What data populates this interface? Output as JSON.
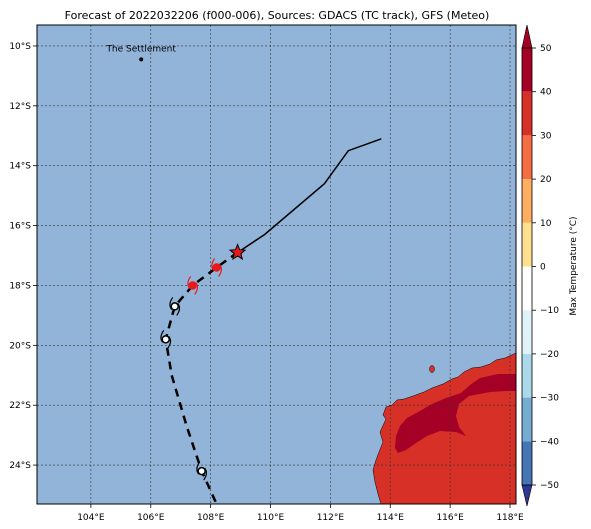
{
  "title": "Forecast of 2022032206 (f000-006), Sources: GDACS (TC track), GFS (Meteo)",
  "map": {
    "lon_range": [
      102.2,
      118.2
    ],
    "lat_range": [
      -25.3,
      -9.3
    ],
    "lon_ticks": [
      {
        "value": 104,
        "label": "104°E"
      },
      {
        "value": 106,
        "label": "106°E"
      },
      {
        "value": 108,
        "label": "108°E"
      },
      {
        "value": 110,
        "label": "110°E"
      },
      {
        "value": 112,
        "label": "112°E"
      },
      {
        "value": 114,
        "label": "114°E"
      },
      {
        "value": 116,
        "label": "116°E"
      },
      {
        "value": 118,
        "label": "118°E"
      }
    ],
    "lat_ticks": [
      {
        "value": -10,
        "label": "10°S"
      },
      {
        "value": -12,
        "label": "12°S"
      },
      {
        "value": -14,
        "label": "14°S"
      },
      {
        "value": -16,
        "label": "16°S"
      },
      {
        "value": -18,
        "label": "18°S"
      },
      {
        "value": -20,
        "label": "20°S"
      },
      {
        "value": -22,
        "label": "22°S"
      },
      {
        "value": -24,
        "label": "24°S"
      }
    ],
    "place_label": "The Settlement",
    "place_location": [
      105.68,
      -10.45
    ],
    "ocean_color": "#92b4d8",
    "land_color": "#d73027",
    "hot_color": "#a50026"
  },
  "track": {
    "observed": [
      [
        113.7,
        -13.1
      ],
      [
        112.6,
        -13.5
      ],
      [
        111.8,
        -14.6
      ],
      [
        109.8,
        -16.3
      ],
      [
        108.9,
        -16.9
      ]
    ],
    "forecast": [
      [
        108.9,
        -16.9
      ],
      [
        108.2,
        -17.4
      ],
      [
        107.4,
        -18.0
      ],
      [
        106.8,
        -18.7
      ],
      [
        106.5,
        -19.8
      ],
      [
        106.7,
        -21.0
      ],
      [
        107.2,
        -22.7
      ],
      [
        107.7,
        -24.2
      ],
      [
        108.2,
        -25.3
      ]
    ],
    "current_position": [
      108.9,
      -16.9
    ],
    "storm_markers": [
      {
        "lon": 108.2,
        "lat": -17.4,
        "color": "#e41a1c"
      },
      {
        "lon": 107.4,
        "lat": -18.0,
        "color": "#e41a1c"
      },
      {
        "lon": 106.8,
        "lat": -18.7,
        "color": "#000000"
      },
      {
        "lon": 106.5,
        "lat": -19.8,
        "color": "#000000"
      },
      {
        "lon": 107.7,
        "lat": -24.2,
        "color": "#000000"
      }
    ]
  },
  "colorbar": {
    "label": "Max Temperature (°C)",
    "min": -50,
    "max": 50,
    "ticks": [
      50,
      40,
      30,
      20,
      10,
      0,
      -10,
      -20,
      -30,
      -40,
      -50
    ],
    "bands": [
      {
        "from": 40,
        "to": 50,
        "color": "#a50026"
      },
      {
        "from": 30,
        "to": 40,
        "color": "#d73027"
      },
      {
        "from": 20,
        "to": 30,
        "color": "#f46d43"
      },
      {
        "from": 10,
        "to": 20,
        "color": "#fdae61"
      },
      {
        "from": 0,
        "to": 10,
        "color": "#fee090"
      },
      {
        "from": -10,
        "to": 0,
        "color": "#ffffff"
      },
      {
        "from": -20,
        "to": -10,
        "color": "#e0f3f8"
      },
      {
        "from": -30,
        "to": -20,
        "color": "#abd9e9"
      },
      {
        "from": -40,
        "to": -30,
        "color": "#74add1"
      },
      {
        "from": -50,
        "to": -40,
        "color": "#4575b4"
      }
    ],
    "under_color": "#313695",
    "over_color": "#a50026"
  }
}
